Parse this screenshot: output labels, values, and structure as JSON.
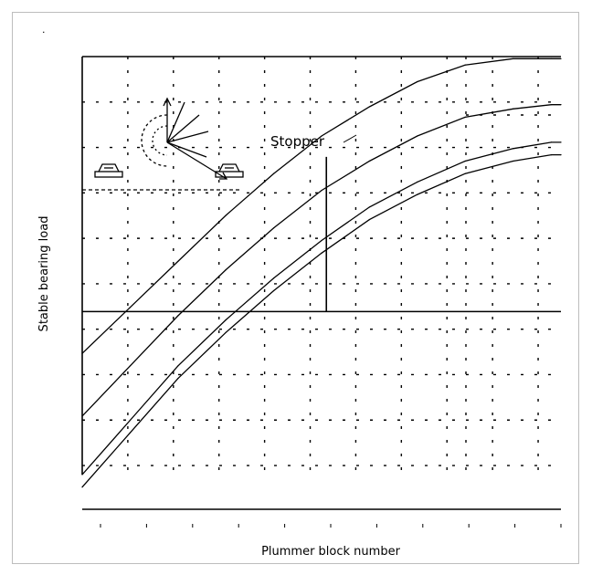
{
  "chart_data": {
    "type": "line",
    "title": "",
    "xlabel": "Plummer block number",
    "ylabel": "Stable bearing load",
    "annotation": "Stopper",
    "grid": true,
    "xlim": [
      0,
      10
    ],
    "ylim": [
      0,
      10
    ],
    "series": [
      {
        "x": [
          0.0,
          1.0,
          2.0,
          3.0,
          4.0,
          5.0,
          6.0,
          7.0,
          8.0,
          9.0,
          9.8,
          10.0
        ],
        "y": [
          2.9,
          4.0,
          5.1,
          6.2,
          7.2,
          8.1,
          8.8,
          9.4,
          9.8,
          9.95,
          9.95,
          9.95
        ]
      },
      {
        "x": [
          0.0,
          1.0,
          2.0,
          3.0,
          4.0,
          5.0,
          6.0,
          7.0,
          8.0,
          9.0,
          9.8,
          10.0
        ],
        "y": [
          1.4,
          2.6,
          3.8,
          4.9,
          5.9,
          6.8,
          7.5,
          8.1,
          8.55,
          8.75,
          8.85,
          8.85
        ]
      },
      {
        "x": [
          0.0,
          1.0,
          2.0,
          3.0,
          4.0,
          5.0,
          6.0,
          7.0,
          8.0,
          9.0,
          9.8,
          10.0
        ],
        "y": [
          0.0,
          1.3,
          2.6,
          3.7,
          4.7,
          5.6,
          6.4,
          7.0,
          7.5,
          7.8,
          7.95,
          7.95
        ]
      },
      {
        "x": [
          0.0,
          1.0,
          2.0,
          3.0,
          4.0,
          5.0,
          6.0,
          7.0,
          8.0,
          9.0,
          9.8,
          10.0
        ],
        "y": [
          -0.3,
          1.0,
          2.3,
          3.4,
          4.4,
          5.3,
          6.1,
          6.7,
          7.2,
          7.5,
          7.65,
          7.65
        ]
      }
    ],
    "reference_lines": {
      "horizontal_y": 3.9,
      "vertical_x": 5.1
    }
  },
  "colors": {
    "line": "#000000",
    "background": "#ffffff",
    "frame": "#bdbdbd"
  },
  "icon": "bearing-angle-diagram-icon"
}
